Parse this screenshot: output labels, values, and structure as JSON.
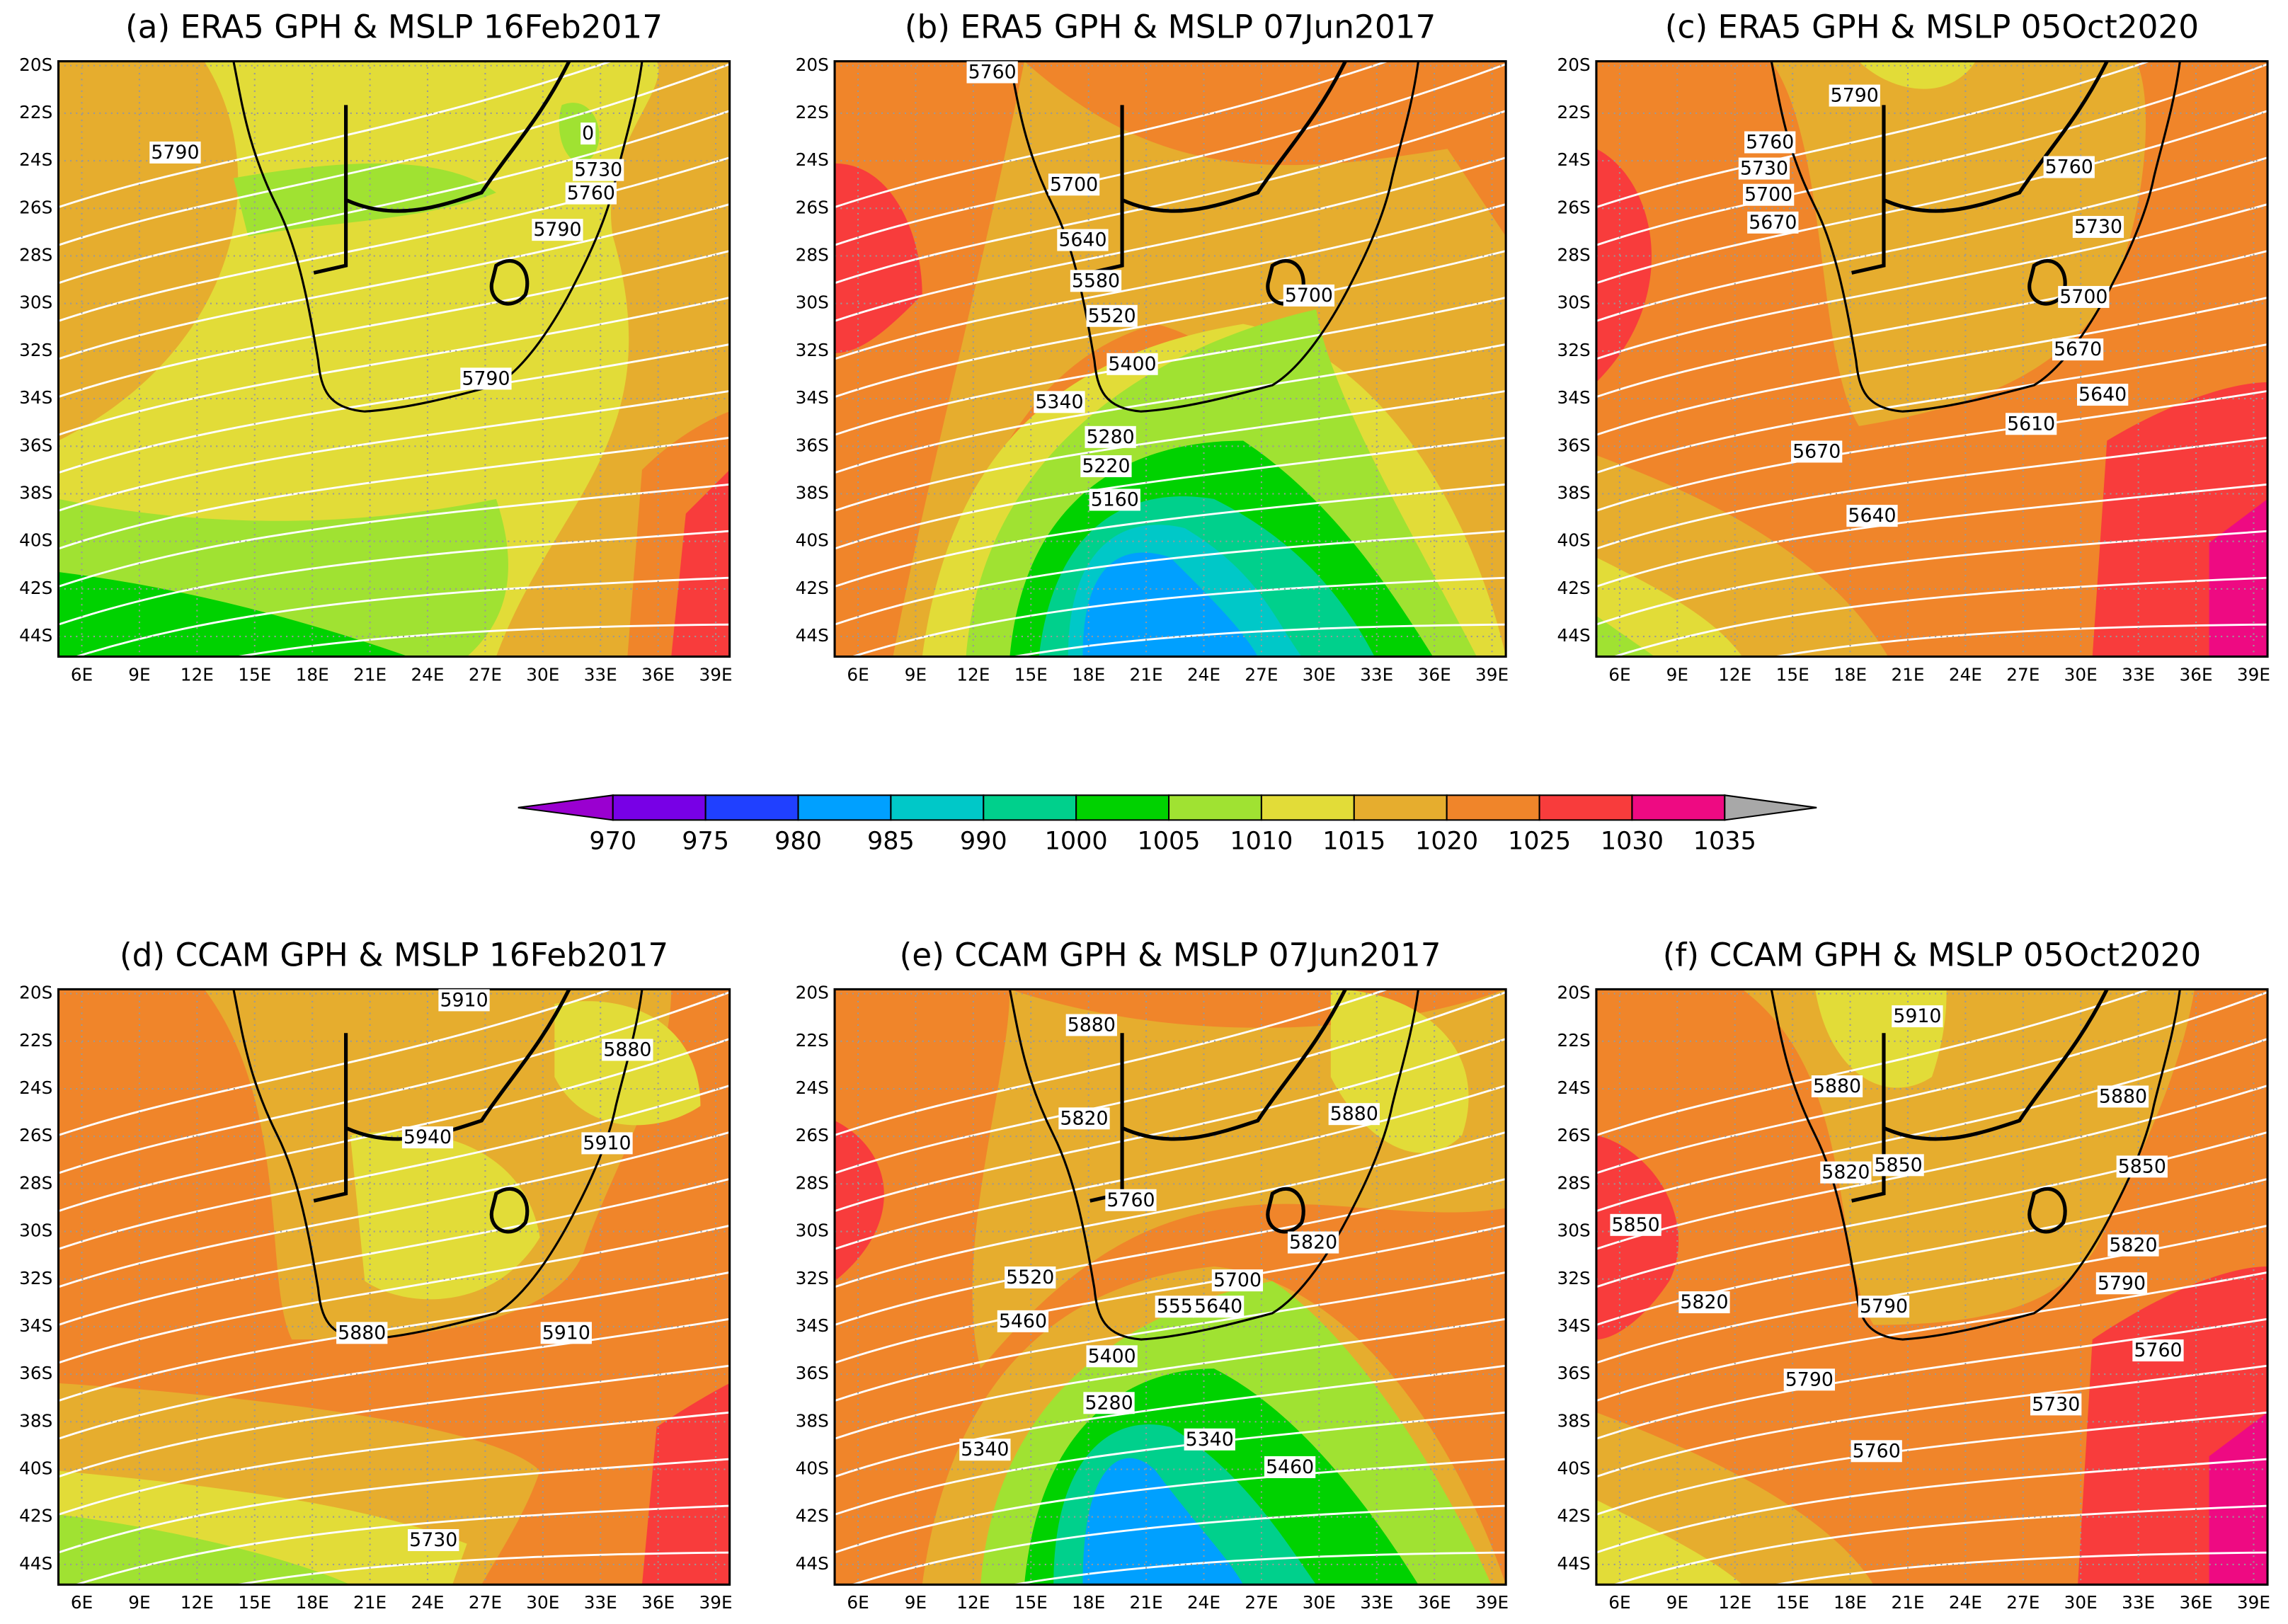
{
  "panels": [
    {
      "title": "(a) ERA5 GPH & MSLP 16Feb2017",
      "contour_labels": [
        "5790",
        "0",
        "5730",
        "5760",
        "5790",
        "5790"
      ]
    },
    {
      "title": "(b) ERA5 GPH & MSLP 07Jun2017",
      "contour_labels": [
        "5760",
        "5700",
        "5640",
        "5580",
        "5520",
        "5400",
        "5700",
        "5340",
        "5280",
        "5220",
        "5160"
      ]
    },
    {
      "title": "(c) ERA5 GPH & MSLP 05Oct2020",
      "contour_labels": [
        "5790",
        "5760",
        "5760",
        "5730",
        "5700",
        "5670",
        "5730",
        "5700",
        "5670",
        "5640",
        "5610",
        "5670",
        "5640"
      ]
    },
    {
      "title": "(d) CCAM GPH & MSLP 16Feb2017",
      "contour_labels": [
        "5910",
        "5880",
        "5940",
        "5910",
        "5880",
        "5910",
        "5730"
      ]
    },
    {
      "title": "(e) CCAM GPH & MSLP 07Jun2017",
      "contour_labels": [
        "5880",
        "5820",
        "5880",
        "5760",
        "5820",
        "5520",
        "5700",
        "5460",
        "555",
        "5640",
        "5400",
        "5280",
        "5340",
        "5340",
        "5460"
      ]
    },
    {
      "title": "(f) CCAM GPH & MSLP 05Oct2020",
      "contour_labels": [
        "5910",
        "5880",
        "5880",
        "5820",
        "5850",
        "5850",
        "5850",
        "5820",
        "5790",
        "5820",
        "5790",
        "5790",
        "5760",
        "5730",
        "5760"
      ]
    }
  ],
  "lat_labels": [
    "20S",
    "22S",
    "24S",
    "26S",
    "28S",
    "30S",
    "32S",
    "34S",
    "36S",
    "38S",
    "40S",
    "42S",
    "44S"
  ],
  "lon_labels": [
    "6E",
    "9E",
    "12E",
    "15E",
    "18E",
    "21E",
    "24E",
    "27E",
    "30E",
    "33E",
    "36E",
    "39E"
  ],
  "colorbar": {
    "labels": [
      970,
      975,
      980,
      985,
      990,
      1000,
      1005,
      1010,
      1015,
      1020,
      1025,
      1030,
      1035
    ],
    "under_color": "#9a00d0",
    "colors": [
      "#7800e6",
      "#2040ff",
      "#00a0ff",
      "#00c8c8",
      "#00d08c",
      "#00d200",
      "#a0e232",
      "#e2dc38",
      "#e6ad2e",
      "#f0852a",
      "#f83c3c",
      "#ee0a82"
    ],
    "over_color": "#a8a8a8"
  }
}
